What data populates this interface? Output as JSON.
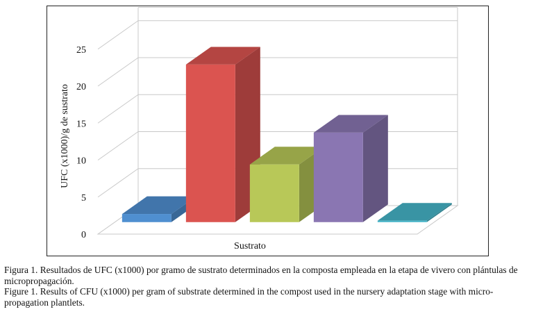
{
  "chart_data": {
    "type": "bar",
    "style": "3d",
    "categories": [
      "",
      "",
      "",
      "",
      ""
    ],
    "values": [
      1.1,
      21.3,
      7.8,
      12.1,
      0.2
    ],
    "colors": [
      "#4f8fd0",
      "#db5450",
      "#b8c858",
      "#8a76b2",
      "#46b4c8"
    ],
    "xlabel": "Sustrato",
    "ylabel": "UFC (x1000)/g de sustrato",
    "ylim": [
      0,
      25
    ],
    "yticks": [
      "0",
      "5",
      "10",
      "15",
      "20",
      "25"
    ],
    "grid": true,
    "legend": "none"
  },
  "caption": {
    "es": "Figura 1. Resultados de UFC (x1000) por gramo de sustrato determinados en la composta empleada en la etapa de vivero con plántulas de micropropagación.",
    "en": "Figure 1. Results of CFU (x1000) per gram of substrate determined in the compost used in the nursery adaptation stage with micro-propagation plantlets."
  }
}
